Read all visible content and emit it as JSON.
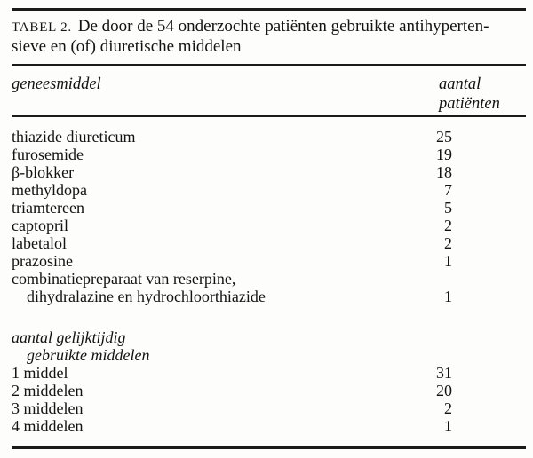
{
  "table": {
    "caption": {
      "label": "TABEL 2.",
      "line1": "De door de 54 onderzochte patiënten gebruikte antihyperten-",
      "line2": "sieve en (of) diuretische middelen"
    },
    "columns": {
      "col1": "geneesmiddel",
      "col2": "aantal patiënten"
    },
    "sections": [
      {
        "rows": [
          {
            "label": "thiazide diureticum",
            "value": "25"
          },
          {
            "label": "furosemide",
            "value": "19"
          },
          {
            "label": "β-blokker",
            "value": "18"
          },
          {
            "label": "methyldopa",
            "value": "7"
          },
          {
            "label": "triamtereen",
            "value": "5"
          },
          {
            "label": "captopril",
            "value": "2"
          },
          {
            "label": "labetalol",
            "value": "2"
          },
          {
            "label": "prazosine",
            "value": "1"
          },
          {
            "label": "combinatiepreparaat van reserpine,",
            "label2": "dihydralazine en hydrochloorthiazide",
            "value": "1"
          }
        ]
      },
      {
        "heading": "aantal gelijktijdig",
        "heading2": "gebruikte middelen",
        "rows": [
          {
            "label": "1 middel",
            "value": "31"
          },
          {
            "label": "2 middelen",
            "value": "20"
          },
          {
            "label": "3 middelen",
            "value": "2"
          },
          {
            "label": "4 middelen",
            "value": "1"
          }
        ]
      }
    ]
  }
}
